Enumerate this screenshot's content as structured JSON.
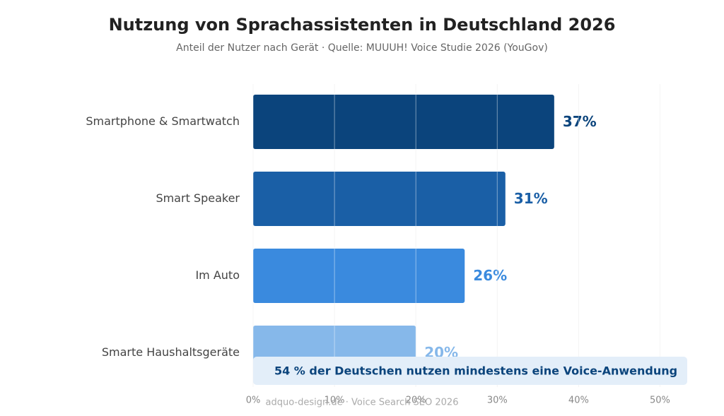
{
  "chart_data": {
    "type": "bar",
    "orientation": "horizontal",
    "title": "Nutzung von Sprachassistenten in Deutschland 2026",
    "subtitle": "Anteil der Nutzer nach Gerät · Quelle: MUUUH! Voice Studie 2026 (YouGov)",
    "categories": [
      "Smartphone & Smartwatch",
      "Smart Speaker",
      "Im Auto",
      "Smarte Haushaltsgeräte"
    ],
    "values": [
      37,
      31,
      26,
      20
    ],
    "value_labels": [
      "37%",
      "31%",
      "26%",
      "20%"
    ],
    "colors": [
      "#0b447c",
      "#1a5fa6",
      "#3a8ade",
      "#86b8ea"
    ],
    "xlim": [
      0,
      53
    ],
    "xticks": [
      {
        "value": 0,
        "label": "0%"
      },
      {
        "value": 10,
        "label": "10%"
      },
      {
        "value": 20,
        "label": "20%"
      },
      {
        "value": 30,
        "label": "30%"
      },
      {
        "value": 40,
        "label": "40%"
      },
      {
        "value": 50,
        "label": "50%"
      }
    ],
    "grid": true,
    "annotation": "54 % der Deutschen nutzen mindestens eine Voice-Anwendung",
    "footer": "adquo-design.de · Voice Search SEO 2026"
  }
}
